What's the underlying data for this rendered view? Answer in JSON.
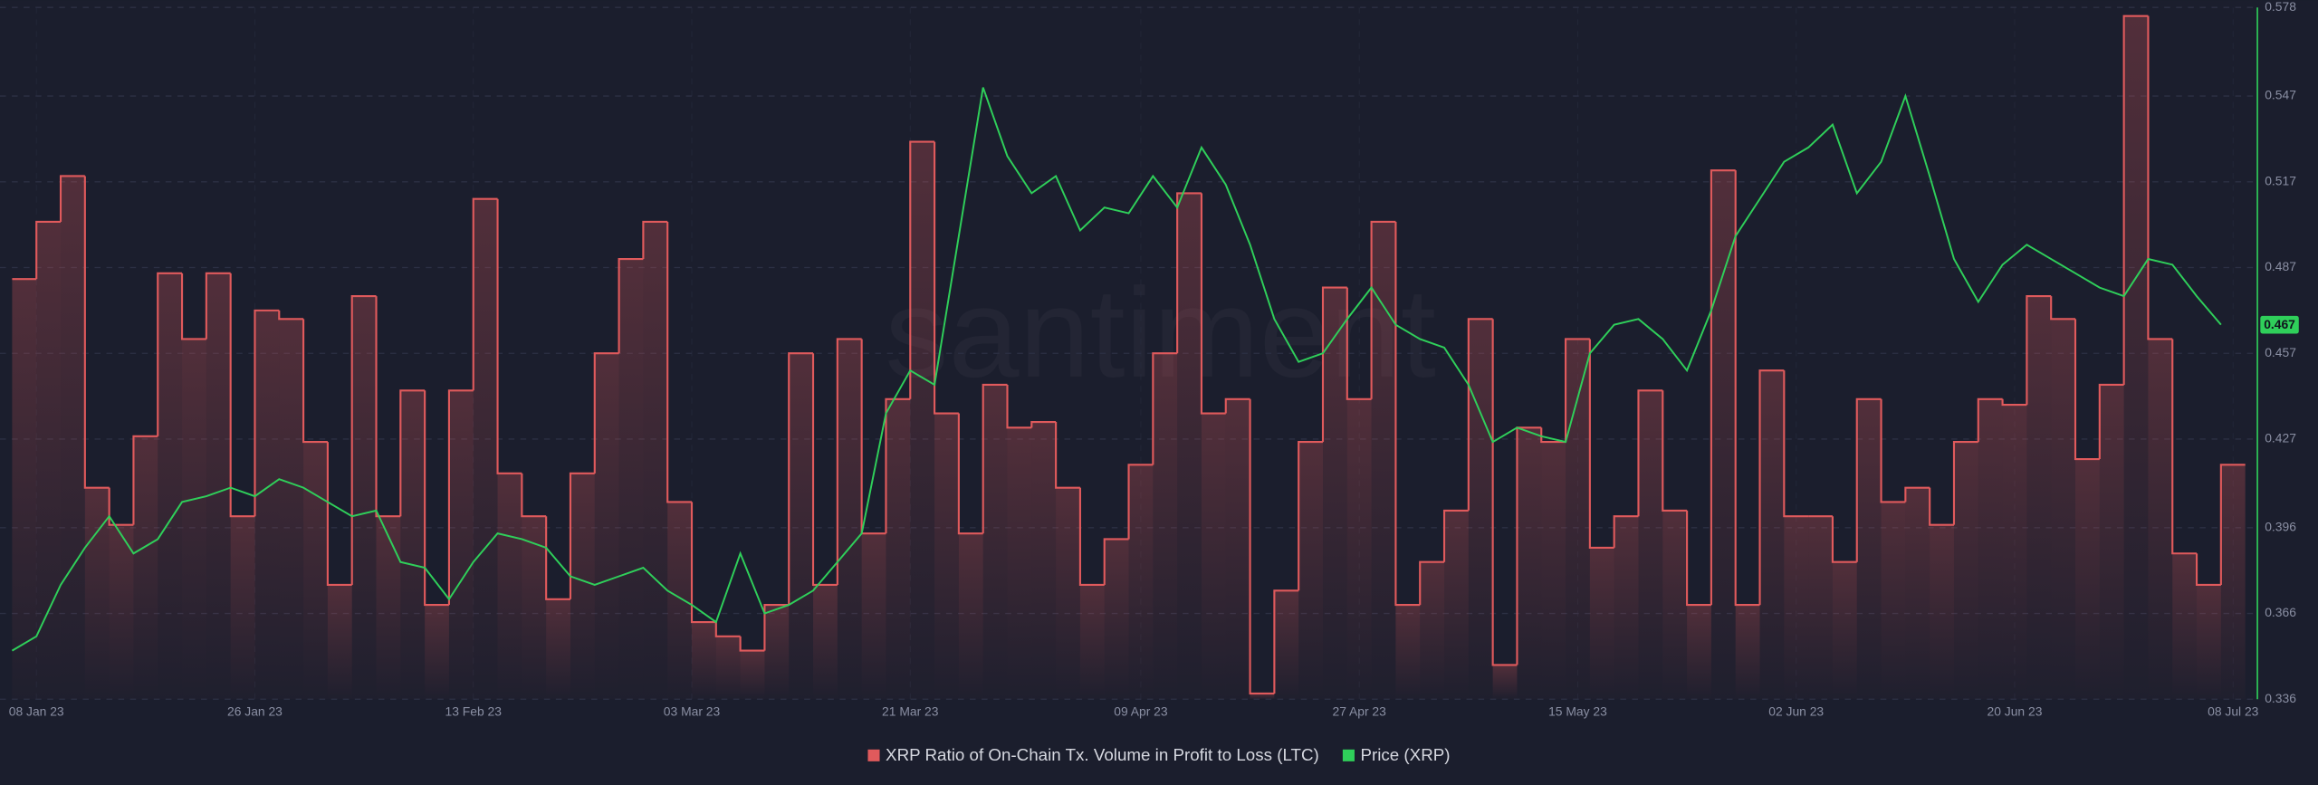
{
  "chart_data": {
    "type": "line",
    "watermark": "santiment",
    "legend_position": "bottom",
    "grid": true,
    "xlim": [
      "2023-01-05",
      "2023-07-10"
    ],
    "xticks": [
      {
        "value": "2023-01-08",
        "label": "08 Jan 23"
      },
      {
        "value": "2023-01-26",
        "label": "26 Jan 23"
      },
      {
        "value": "2023-02-13",
        "label": "13 Feb 23"
      },
      {
        "value": "2023-03-03",
        "label": "03 Mar 23"
      },
      {
        "value": "2023-03-21",
        "label": "21 Mar 23"
      },
      {
        "value": "2023-04-09",
        "label": "09 Apr 23"
      },
      {
        "value": "2023-04-27",
        "label": "27 Apr 23"
      },
      {
        "value": "2023-05-15",
        "label": "15 May 23"
      },
      {
        "value": "2023-06-02",
        "label": "02 Jun 23"
      },
      {
        "value": "2023-06-20",
        "label": "20 Jun 23"
      },
      {
        "value": "2023-07-08",
        "label": "08 Jul 23"
      }
    ],
    "ylim": [
      0.336,
      0.578
    ],
    "yticks": [
      0.336,
      0.366,
      0.396,
      0.427,
      0.457,
      0.487,
      0.517,
      0.547,
      0.578
    ],
    "x": [
      "2023-01-06",
      "2023-01-08",
      "2023-01-10",
      "2023-01-12",
      "2023-01-14",
      "2023-01-16",
      "2023-01-18",
      "2023-01-20",
      "2023-01-22",
      "2023-01-24",
      "2023-01-26",
      "2023-01-28",
      "2023-01-30",
      "2023-02-01",
      "2023-02-03",
      "2023-02-05",
      "2023-02-07",
      "2023-02-09",
      "2023-02-11",
      "2023-02-13",
      "2023-02-15",
      "2023-02-17",
      "2023-02-19",
      "2023-02-21",
      "2023-02-23",
      "2023-02-25",
      "2023-02-27",
      "2023-03-01",
      "2023-03-03",
      "2023-03-05",
      "2023-03-07",
      "2023-03-09",
      "2023-03-11",
      "2023-03-13",
      "2023-03-15",
      "2023-03-17",
      "2023-03-19",
      "2023-03-21",
      "2023-03-23",
      "2023-03-25",
      "2023-03-27",
      "2023-03-29",
      "2023-03-31",
      "2023-04-02",
      "2023-04-04",
      "2023-04-06",
      "2023-04-08",
      "2023-04-10",
      "2023-04-12",
      "2023-04-14",
      "2023-04-16",
      "2023-04-18",
      "2023-04-20",
      "2023-04-22",
      "2023-04-24",
      "2023-04-26",
      "2023-04-28",
      "2023-04-30",
      "2023-05-02",
      "2023-05-04",
      "2023-05-06",
      "2023-05-08",
      "2023-05-10",
      "2023-05-12",
      "2023-05-14",
      "2023-05-16",
      "2023-05-18",
      "2023-05-20",
      "2023-05-22",
      "2023-05-24",
      "2023-05-26",
      "2023-05-28",
      "2023-05-30",
      "2023-06-01",
      "2023-06-03",
      "2023-06-05",
      "2023-06-07",
      "2023-06-09",
      "2023-06-11",
      "2023-06-13",
      "2023-06-15",
      "2023-06-17",
      "2023-06-19",
      "2023-06-21",
      "2023-06-23",
      "2023-06-25",
      "2023-06-27",
      "2023-06-29",
      "2023-07-01",
      "2023-07-03",
      "2023-07-05",
      "2023-07-07"
    ],
    "series": [
      {
        "name": "XRP Ratio of On-Chain Tx. Volume in Profit to Loss (LTC)",
        "color": "#e05a5c",
        "style": "step",
        "values": [
          0.483,
          0.503,
          0.519,
          0.41,
          0.397,
          0.428,
          0.485,
          0.462,
          0.485,
          0.4,
          0.472,
          0.469,
          0.426,
          0.376,
          0.477,
          0.4,
          0.444,
          0.369,
          0.444,
          0.511,
          0.415,
          0.4,
          0.371,
          0.415,
          0.457,
          0.49,
          0.503,
          0.405,
          0.363,
          0.358,
          0.353,
          0.369,
          0.457,
          0.376,
          0.462,
          0.394,
          0.441,
          0.531,
          0.436,
          0.394,
          0.446,
          0.431,
          0.433,
          0.41,
          0.376,
          0.392,
          0.418,
          0.457,
          0.513,
          0.436,
          0.441,
          0.338,
          0.374,
          0.426,
          0.48,
          0.441,
          0.503,
          0.369,
          0.384,
          0.402,
          0.469,
          0.348,
          0.431,
          0.426,
          0.462,
          0.389,
          0.4,
          0.444,
          0.402,
          0.369,
          0.521,
          0.369,
          0.451,
          0.4,
          0.4,
          0.384,
          0.441,
          0.405,
          0.41,
          0.397,
          0.426,
          0.441,
          0.439,
          0.477,
          0.469,
          0.42,
          0.446,
          0.575,
          0.462,
          0.387,
          0.376,
          0.418
        ]
      },
      {
        "name": "Price (XRP)",
        "color": "#2fcf5a",
        "style": "line",
        "values": [
          0.353,
          0.358,
          0.376,
          0.389,
          0.4,
          0.387,
          0.392,
          0.405,
          0.407,
          0.41,
          0.407,
          0.413,
          0.41,
          0.405,
          0.4,
          0.402,
          0.384,
          0.382,
          0.371,
          0.384,
          0.394,
          0.392,
          0.389,
          0.379,
          0.376,
          0.379,
          0.382,
          0.374,
          0.369,
          0.363,
          0.387,
          0.366,
          0.369,
          0.374,
          0.384,
          0.394,
          0.436,
          0.451,
          0.446,
          0.498,
          0.55,
          0.526,
          0.513,
          0.519,
          0.5,
          0.508,
          0.506,
          0.519,
          0.508,
          0.529,
          0.516,
          0.495,
          0.469,
          0.454,
          0.457,
          0.469,
          0.48,
          0.467,
          0.462,
          0.459,
          0.446,
          0.426,
          0.431,
          0.428,
          0.426,
          0.457,
          0.467,
          0.469,
          0.462,
          0.451,
          0.472,
          0.498,
          0.511,
          0.524,
          0.529,
          0.537,
          0.513,
          0.524,
          0.547,
          0.519,
          0.49,
          0.475,
          0.488,
          0.495,
          0.49,
          0.485,
          0.48,
          0.477,
          0.49,
          0.488,
          0.477,
          0.467
        ]
      }
    ]
  }
}
